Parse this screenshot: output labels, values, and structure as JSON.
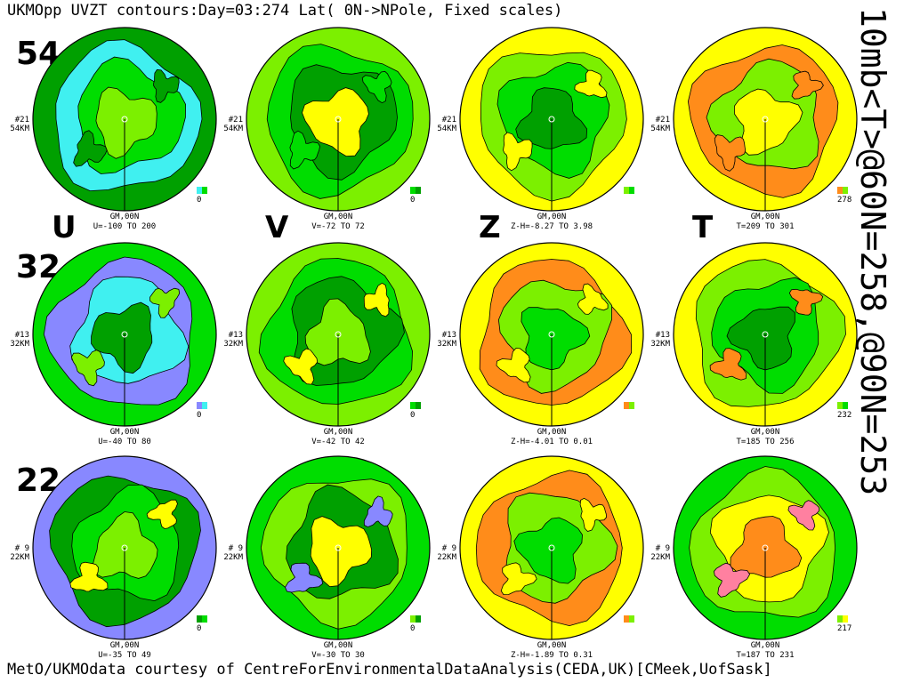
{
  "title": "UKMOpp UVZT contours:Day=03:274 Lat( 0N->NPole, Fixed scales)",
  "side_text": "10mb<T>@60N=258,@90N=253",
  "credit": "MetO/UKMOdata courtesy of CentreForEnvironmentalDataAnalysis(CEDA,UK)[CMeek,UofSask]",
  "levels": [
    "54",
    "32",
    "22"
  ],
  "variables": [
    "U",
    "V",
    "Z",
    "T"
  ],
  "meridian_label": "GM,00N",
  "level_labels": [
    {
      "idx": "#21",
      "km": "54KM"
    },
    {
      "idx": "#13",
      "km": "32KM"
    },
    {
      "idx": "# 9",
      "km": "22KM"
    }
  ],
  "ranges": [
    [
      "U=-100 TO 200",
      "V=-72 TO  72",
      "Z-H=-8.27 TO 3.98",
      "T=209 TO 301"
    ],
    [
      "U=-40 TO  80",
      "V=-42 TO  42",
      "Z-H=-4.01 TO 0.01",
      "T=185 TO 256"
    ],
    [
      "U=-35 TO  49",
      "V=-30 TO  30",
      "Z-H=-1.89 TO 0.31",
      "T=187 TO 231"
    ]
  ],
  "key_values": [
    [
      "0",
      "0",
      "",
      "278"
    ],
    [
      "0",
      "0",
      "",
      "232"
    ],
    [
      "0",
      "0",
      "",
      "217"
    ]
  ],
  "colors": {
    "dark_green": "#00a000",
    "green": "#00dd00",
    "light_green": "#7cf000",
    "yellow": "#ffff00",
    "orange": "#ff8c1a",
    "cyan": "#40f0f0",
    "blue": "#4040ff",
    "violet": "#8888ff",
    "pink": "#ff80a0"
  }
}
